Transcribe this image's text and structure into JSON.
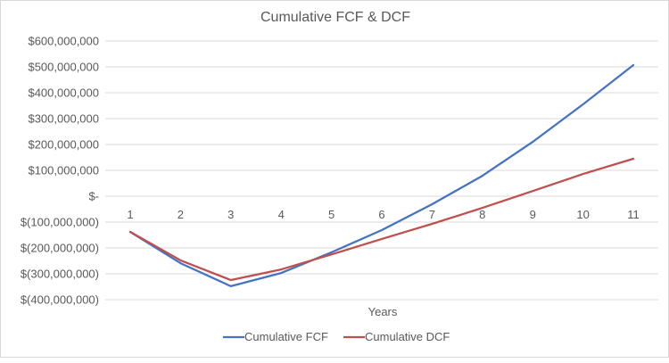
{
  "chart_data": {
    "type": "line",
    "title": "Cumulative FCF & DCF",
    "xlabel": "Years",
    "ylabel": "",
    "categories": [
      "1",
      "2",
      "3",
      "4",
      "5",
      "6",
      "7",
      "8",
      "9",
      "10",
      "11"
    ],
    "ylim": [
      -400000000,
      600000000
    ],
    "ytick_step": 100000000,
    "ytick_labels": [
      "$600,000,000",
      "$500,000,000",
      "$400,000,000",
      "$300,000,000",
      "$200,000,000",
      "$100,000,000",
      "$-",
      "$(100,000,000)",
      "$(200,000,000)",
      "$(300,000,000)",
      "$(400,000,000)"
    ],
    "grid": true,
    "legend_position": "bottom",
    "series": [
      {
        "name": "Cumulative FCF",
        "color": "#4472C4",
        "values": [
          -138000000,
          -259000000,
          -348000000,
          -297000000,
          -217000000,
          -131000000,
          -31000000,
          79000000,
          210000000,
          355000000,
          507000000
        ]
      },
      {
        "name": "Cumulative DCF",
        "color": "#C0504D",
        "values": [
          -138000000,
          -248000000,
          -324000000,
          -283000000,
          -225000000,
          -165000000,
          -107000000,
          -45000000,
          20000000,
          86000000,
          145000000
        ]
      }
    ]
  }
}
